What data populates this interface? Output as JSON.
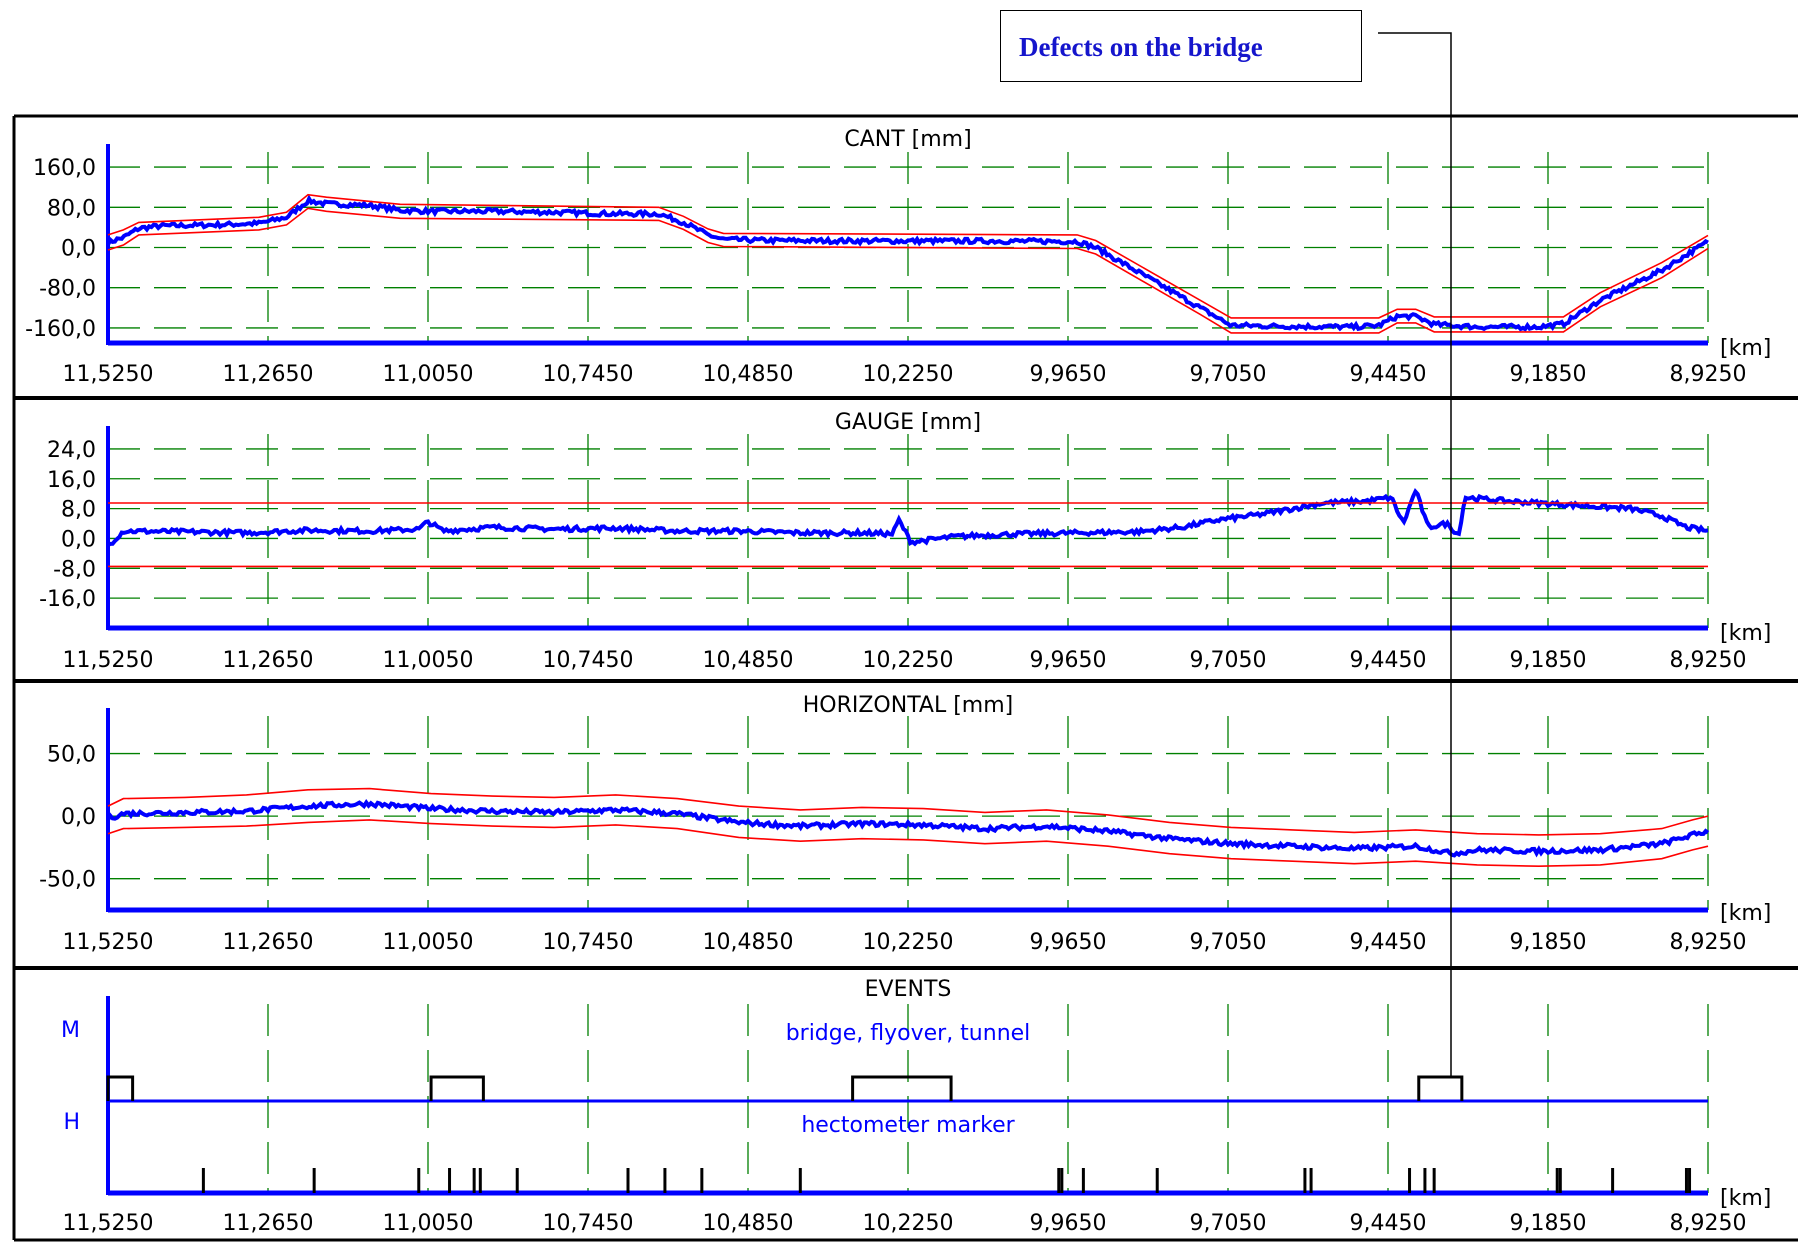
{
  "callout": {
    "text": "Defects on the bridge"
  },
  "x_unit": "[km]",
  "x_ticks": [
    "11,5250",
    "11,2650",
    "11,0050",
    "10,7450",
    "10,4850",
    "10,2250",
    "9,9650",
    "9,7050",
    "9,4450",
    "9,1850",
    "8,9250"
  ],
  "chart_data": [
    {
      "type": "line",
      "title": "CANT [mm]",
      "xlabel": "[km]",
      "x_range_km": [
        11.525,
        8.925
      ],
      "ylim": [
        -190,
        190
      ],
      "yticks": [
        "160,0",
        "80,0",
        "0,0",
        "-80,0",
        "-160,0"
      ],
      "ytick_values": [
        160,
        80,
        0,
        -80,
        -160
      ],
      "grid": true,
      "series": [
        {
          "role": "measured",
          "color": "#0000ff",
          "points": [
            [
              11.525,
              10
            ],
            [
              11.5,
              20
            ],
            [
              11.475,
              38
            ],
            [
              11.44,
              43
            ],
            [
              11.35,
              45
            ],
            [
              11.28,
              48
            ],
            [
              11.235,
              60
            ],
            [
              11.2,
              93
            ],
            [
              11.17,
              87
            ],
            [
              11.1,
              84
            ],
            [
              11.05,
              74
            ],
            [
              11.0,
              72
            ],
            [
              10.9,
              72
            ],
            [
              10.8,
              70
            ],
            [
              10.7,
              67
            ],
            [
              10.63,
              67
            ],
            [
              10.59,
              50
            ],
            [
              10.55,
              25
            ],
            [
              10.525,
              16
            ],
            [
              10.45,
              14
            ],
            [
              10.3,
              13
            ],
            [
              10.1,
              13
            ],
            [
              9.95,
              12
            ],
            [
              9.92,
              0
            ],
            [
              9.75,
              -120
            ],
            [
              9.7,
              -155
            ],
            [
              9.6,
              -157
            ],
            [
              9.5,
              -158
            ],
            [
              9.46,
              -155
            ],
            [
              9.43,
              -137
            ],
            [
              9.4,
              -137
            ],
            [
              9.37,
              -153
            ],
            [
              9.3,
              -158
            ],
            [
              9.2,
              -158
            ],
            [
              9.16,
              -152
            ],
            [
              9.1,
              -105
            ],
            [
              9.0,
              -45
            ],
            [
              8.925,
              12
            ]
          ]
        },
        {
          "role": "upper-limit",
          "color": "#ff0000",
          "points": [
            [
              11.525,
              25
            ],
            [
              11.5,
              35
            ],
            [
              11.475,
              50
            ],
            [
              11.28,
              60
            ],
            [
              11.235,
              70
            ],
            [
              11.2,
              105
            ],
            [
              11.17,
              100
            ],
            [
              11.05,
              86
            ],
            [
              10.63,
              80
            ],
            [
              10.59,
              62
            ],
            [
              10.55,
              37
            ],
            [
              10.525,
              28
            ],
            [
              9.95,
              25
            ],
            [
              9.92,
              14
            ],
            [
              9.75,
              -105
            ],
            [
              9.7,
              -140
            ],
            [
              9.46,
              -140
            ],
            [
              9.43,
              -123
            ],
            [
              9.4,
              -123
            ],
            [
              9.37,
              -138
            ],
            [
              9.16,
              -138
            ],
            [
              9.1,
              -90
            ],
            [
              9.0,
              -30
            ],
            [
              8.925,
              24
            ]
          ]
        },
        {
          "role": "lower-limit",
          "color": "#ff0000",
          "points": [
            [
              11.525,
              -5
            ],
            [
              11.5,
              5
            ],
            [
              11.475,
              25
            ],
            [
              11.28,
              35
            ],
            [
              11.235,
              45
            ],
            [
              11.2,
              78
            ],
            [
              11.17,
              72
            ],
            [
              11.05,
              58
            ],
            [
              10.63,
              54
            ],
            [
              10.59,
              36
            ],
            [
              10.55,
              10
            ],
            [
              10.525,
              2
            ],
            [
              9.95,
              -2
            ],
            [
              9.92,
              -13
            ],
            [
              9.75,
              -133
            ],
            [
              9.7,
              -170
            ],
            [
              9.46,
              -170
            ],
            [
              9.43,
              -150
            ],
            [
              9.4,
              -150
            ],
            [
              9.37,
              -168
            ],
            [
              9.16,
              -168
            ],
            [
              9.1,
              -118
            ],
            [
              9.0,
              -60
            ],
            [
              8.925,
              -2
            ]
          ]
        }
      ]
    },
    {
      "type": "line",
      "title": "GAUGE [mm]",
      "xlabel": "[km]",
      "x_range_km": [
        11.525,
        8.925
      ],
      "ylim": [
        -24,
        28
      ],
      "yticks": [
        "24,0",
        "16,0",
        "8,0",
        "0,0",
        "-8,0",
        "-16,0"
      ],
      "ytick_values": [
        24,
        16,
        8,
        0,
        -8,
        -16
      ],
      "grid": true,
      "series": [
        {
          "role": "measured",
          "color": "#0000ff",
          "points": [
            [
              11.525,
              -2
            ],
            [
              11.5,
              2
            ],
            [
              11.4,
              1.8
            ],
            [
              11.3,
              1.5
            ],
            [
              11.2,
              2.2
            ],
            [
              11.1,
              2
            ],
            [
              11.02,
              2.5
            ],
            [
              11.005,
              4.5
            ],
            [
              10.98,
              2
            ],
            [
              10.9,
              3
            ],
            [
              10.8,
              2.5
            ],
            [
              10.7,
              2.8
            ],
            [
              10.6,
              2
            ],
            [
              10.5,
              2
            ],
            [
              10.4,
              1.5
            ],
            [
              10.3,
              1.5
            ],
            [
              10.25,
              1.2
            ],
            [
              10.24,
              5
            ],
            [
              10.22,
              -1
            ],
            [
              10.15,
              0.5
            ],
            [
              10.05,
              1.2
            ],
            [
              9.95,
              1.5
            ],
            [
              9.85,
              1.8
            ],
            [
              9.78,
              3
            ],
            [
              9.72,
              5
            ],
            [
              9.65,
              6.5
            ],
            [
              9.55,
              9.5
            ],
            [
              9.48,
              10
            ],
            [
              9.44,
              11
            ],
            [
              9.42,
              4
            ],
            [
              9.4,
              13
            ],
            [
              9.38,
              3
            ],
            [
              9.35,
              4
            ],
            [
              9.33,
              1
            ],
            [
              9.32,
              11
            ],
            [
              9.25,
              10
            ],
            [
              9.15,
              9
            ],
            [
              9.05,
              8
            ],
            [
              9.0,
              6
            ],
            [
              8.96,
              3
            ],
            [
              8.925,
              2
            ]
          ]
        },
        {
          "role": "upper-limit",
          "color": "#ff0000",
          "points": [
            [
              11.525,
              9.5
            ],
            [
              8.925,
              9.5
            ]
          ]
        },
        {
          "role": "lower-limit",
          "color": "#ff0000",
          "points": [
            [
              11.525,
              -7.5
            ],
            [
              8.925,
              -7.5
            ]
          ]
        }
      ]
    },
    {
      "type": "line",
      "title": "HORIZONTAL [mm]",
      "xlabel": "[km]",
      "x_range_km": [
        11.525,
        8.925
      ],
      "ylim": [
        -75,
        80
      ],
      "yticks": [
        "50,0",
        "0,0",
        "-50,0"
      ],
      "ytick_values": [
        50,
        0,
        -50
      ],
      "grid": true,
      "series": [
        {
          "role": "measured",
          "color": "#0000ff",
          "points": [
            [
              11.525,
              -2
            ],
            [
              11.5,
              2
            ],
            [
              11.4,
              3
            ],
            [
              11.3,
              4
            ],
            [
              11.2,
              8
            ],
            [
              11.1,
              10
            ],
            [
              11.0,
              6
            ],
            [
              10.9,
              4
            ],
            [
              10.8,
              3
            ],
            [
              10.7,
              5
            ],
            [
              10.6,
              2
            ],
            [
              10.5,
              -5
            ],
            [
              10.4,
              -8
            ],
            [
              10.3,
              -6
            ],
            [
              10.2,
              -7
            ],
            [
              10.1,
              -10
            ],
            [
              10.0,
              -8
            ],
            [
              9.9,
              -12
            ],
            [
              9.8,
              -18
            ],
            [
              9.7,
              -22
            ],
            [
              9.6,
              -24
            ],
            [
              9.5,
              -26
            ],
            [
              9.4,
              -24
            ],
            [
              9.34,
              -30
            ],
            [
              9.3,
              -27
            ],
            [
              9.2,
              -28
            ],
            [
              9.1,
              -27
            ],
            [
              9.0,
              -22
            ],
            [
              8.95,
              -15
            ],
            [
              8.925,
              -12
            ]
          ]
        },
        {
          "role": "upper-limit",
          "color": "#ff0000",
          "points": [
            [
              11.525,
              8
            ],
            [
              11.5,
              14
            ],
            [
              11.4,
              15
            ],
            [
              11.3,
              17
            ],
            [
              11.2,
              21
            ],
            [
              11.1,
              22
            ],
            [
              11.0,
              18
            ],
            [
              10.9,
              16
            ],
            [
              10.8,
              15
            ],
            [
              10.7,
              17
            ],
            [
              10.6,
              14
            ],
            [
              10.5,
              8
            ],
            [
              10.4,
              5
            ],
            [
              10.3,
              7
            ],
            [
              10.2,
              6
            ],
            [
              10.1,
              3
            ],
            [
              10.0,
              5
            ],
            [
              9.9,
              1
            ],
            [
              9.8,
              -5
            ],
            [
              9.7,
              -9
            ],
            [
              9.6,
              -11
            ],
            [
              9.5,
              -13
            ],
            [
              9.4,
              -11
            ],
            [
              9.3,
              -14
            ],
            [
              9.2,
              -15
            ],
            [
              9.1,
              -14
            ],
            [
              9.0,
              -10
            ],
            [
              8.95,
              -3
            ],
            [
              8.925,
              0
            ]
          ]
        },
        {
          "role": "lower-limit",
          "color": "#ff0000",
          "points": [
            [
              11.525,
              -14
            ],
            [
              11.5,
              -10
            ],
            [
              11.4,
              -9
            ],
            [
              11.3,
              -8
            ],
            [
              11.2,
              -5
            ],
            [
              11.1,
              -3
            ],
            [
              11.0,
              -6
            ],
            [
              10.9,
              -8
            ],
            [
              10.8,
              -9
            ],
            [
              10.7,
              -7
            ],
            [
              10.6,
              -10
            ],
            [
              10.5,
              -17
            ],
            [
              10.4,
              -20
            ],
            [
              10.3,
              -18
            ],
            [
              10.2,
              -19
            ],
            [
              10.1,
              -22
            ],
            [
              10.0,
              -20
            ],
            [
              9.9,
              -24
            ],
            [
              9.8,
              -30
            ],
            [
              9.7,
              -34
            ],
            [
              9.6,
              -36
            ],
            [
              9.5,
              -38
            ],
            [
              9.4,
              -36
            ],
            [
              9.3,
              -39
            ],
            [
              9.2,
              -40
            ],
            [
              9.1,
              -39
            ],
            [
              9.0,
              -34
            ],
            [
              8.95,
              -27
            ],
            [
              8.925,
              -24
            ]
          ]
        }
      ]
    },
    {
      "type": "events",
      "title": "EVENTS",
      "xlabel": "[km]",
      "x_range_km": [
        11.525,
        8.925
      ],
      "grid": true,
      "lanes": [
        {
          "letter": "M",
          "label": "bridge, flyover, tunnel",
          "intervals": [
            [
              11.525,
              11.485
            ],
            [
              11.0,
              10.915
            ],
            [
              10.315,
              10.155
            ],
            [
              9.395,
              9.325
            ]
          ]
        },
        {
          "letter": "H",
          "label": "hectometer marker",
          "markers": [
            11.37,
            11.19,
            11.02,
            10.97,
            10.93,
            10.92,
            10.86,
            10.68,
            10.62,
            10.56,
            10.4,
            9.98,
            9.975,
            9.94,
            9.82,
            9.58,
            9.57,
            9.41,
            9.385,
            9.37,
            9.17,
            9.165,
            9.08,
            8.96,
            8.955
          ]
        }
      ]
    }
  ]
}
